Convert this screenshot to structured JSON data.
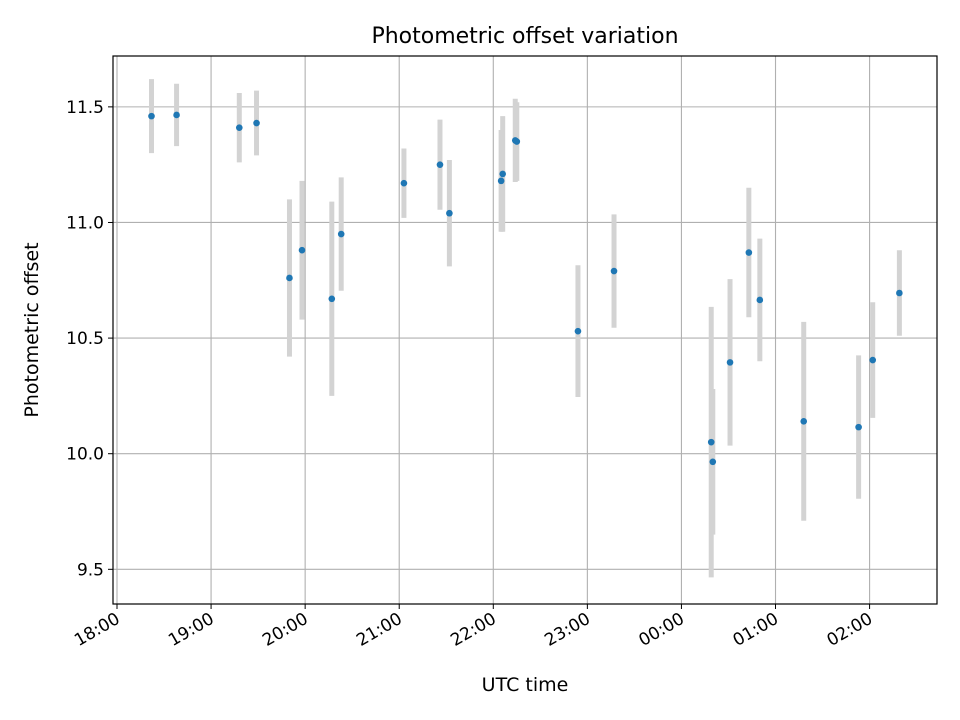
{
  "chart_data": {
    "type": "scatter",
    "title": "Photometric offset variation",
    "xlabel": "UTC time",
    "ylabel": "Photometric offset",
    "xlim": [
      "18:00",
      "02:43"
    ],
    "ylim": [
      9.35,
      11.72
    ],
    "grid": true,
    "x_ticks": [
      "18:00",
      "19:00",
      "20:00",
      "21:00",
      "22:00",
      "23:00",
      "00:00",
      "01:00",
      "02:00"
    ],
    "y_ticks": [
      9.5,
      10.0,
      10.5,
      11.0,
      11.5
    ],
    "point_color": "#1f77b4",
    "errorbar_color": "#d3d3d3",
    "series": [
      {
        "points": [
          {
            "time": "18:22",
            "y": 11.46,
            "err": 0.16
          },
          {
            "time": "18:38",
            "y": 11.465,
            "err": 0.135
          },
          {
            "time": "19:18",
            "y": 11.41,
            "err": 0.15
          },
          {
            "time": "19:29",
            "y": 11.43,
            "err": 0.14
          },
          {
            "time": "19:50",
            "y": 10.76,
            "err": 0.34
          },
          {
            "time": "19:58",
            "y": 10.88,
            "err": 0.3
          },
          {
            "time": "20:17",
            "y": 10.67,
            "err": 0.42
          },
          {
            "time": "20:23",
            "y": 10.95,
            "err": 0.245
          },
          {
            "time": "21:03",
            "y": 11.17,
            "err": 0.15
          },
          {
            "time": "21:26",
            "y": 11.25,
            "err": 0.195
          },
          {
            "time": "21:32",
            "y": 11.04,
            "err": 0.23
          },
          {
            "time": "22:05",
            "y": 11.18,
            "err": 0.22
          },
          {
            "time": "22:06",
            "y": 11.21,
            "err": 0.25
          },
          {
            "time": "22:14",
            "y": 11.355,
            "err": 0.18
          },
          {
            "time": "22:15",
            "y": 11.35,
            "err": 0.17
          },
          {
            "time": "22:54",
            "y": 10.53,
            "err": 0.285
          },
          {
            "time": "23:17",
            "y": 10.79,
            "err": 0.245
          },
          {
            "time": "00:19",
            "y": 10.05,
            "err": 0.585
          },
          {
            "time": "00:20",
            "y": 9.965,
            "err": 0.315
          },
          {
            "time": "00:31",
            "y": 10.395,
            "err": 0.36
          },
          {
            "time": "00:43",
            "y": 10.87,
            "err": 0.28
          },
          {
            "time": "00:50",
            "y": 10.665,
            "err": 0.265
          },
          {
            "time": "01:18",
            "y": 10.14,
            "err": 0.43
          },
          {
            "time": "01:53",
            "y": 10.115,
            "err": 0.31
          },
          {
            "time": "02:02",
            "y": 10.405,
            "err": 0.25
          },
          {
            "time": "02:19",
            "y": 10.695,
            "err": 0.185
          }
        ]
      }
    ]
  }
}
